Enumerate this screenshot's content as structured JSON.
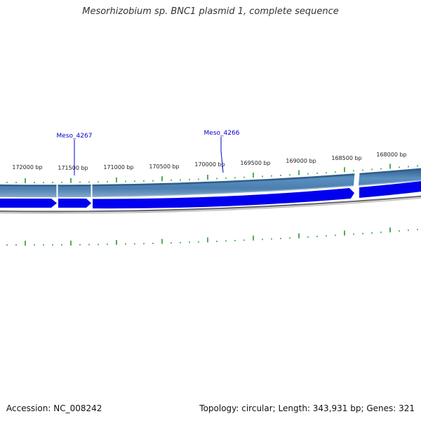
{
  "title": "Mesorhizobium sp. BNC1 plasmid 1, complete sequence",
  "footer": {
    "accession": "Accession: NC_008242",
    "summary": "Topology: circular; Length: 343,931 bp; Genes: 321"
  },
  "colors": {
    "backbone": "#4a7fb0",
    "backbone_dark": "#2e5f8c",
    "backbone_light": "#7fa6cc",
    "gene": "#0000ee",
    "inner_ring": "#808080",
    "tick": "#22992a",
    "label_link": "#0000cc",
    "tick_label": "#222222"
  },
  "scale": {
    "ticks": [
      {
        "label": "172000 bp"
      },
      {
        "label": "171500 bp"
      },
      {
        "label": "171000 bp"
      },
      {
        "label": "170500 bp"
      },
      {
        "label": "170000 bp"
      },
      {
        "label": "169500 bp"
      },
      {
        "label": "169000 bp"
      },
      {
        "label": "168500 bp"
      },
      {
        "label": "168000 bp"
      }
    ]
  },
  "genes": [
    {
      "name": "Meso_4267"
    },
    {
      "name": "Meso_4266"
    }
  ]
}
